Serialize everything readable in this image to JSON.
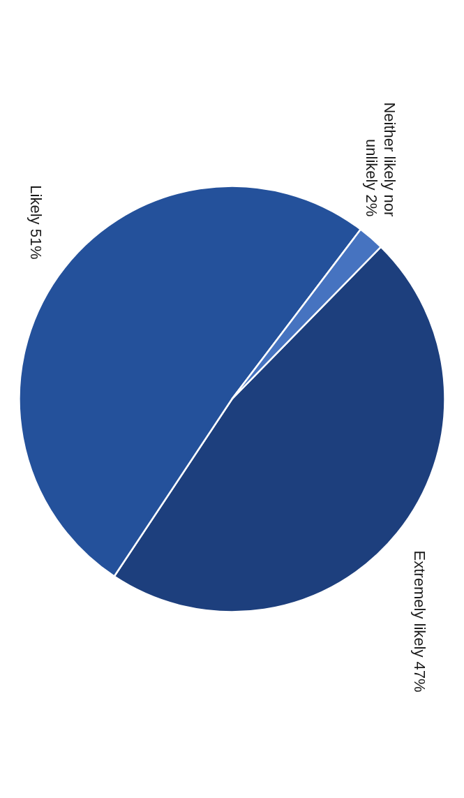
{
  "chart_data": {
    "type": "pie",
    "categories": [
      "Extremely likely",
      "Likely",
      "Neither likely nor unlikely"
    ],
    "values": [
      47,
      51,
      2
    ],
    "value_labels": [
      "47%",
      "51%",
      "2%"
    ],
    "colors": [
      "#1d3f7d",
      "#24519b",
      "#4673c0"
    ]
  }
}
